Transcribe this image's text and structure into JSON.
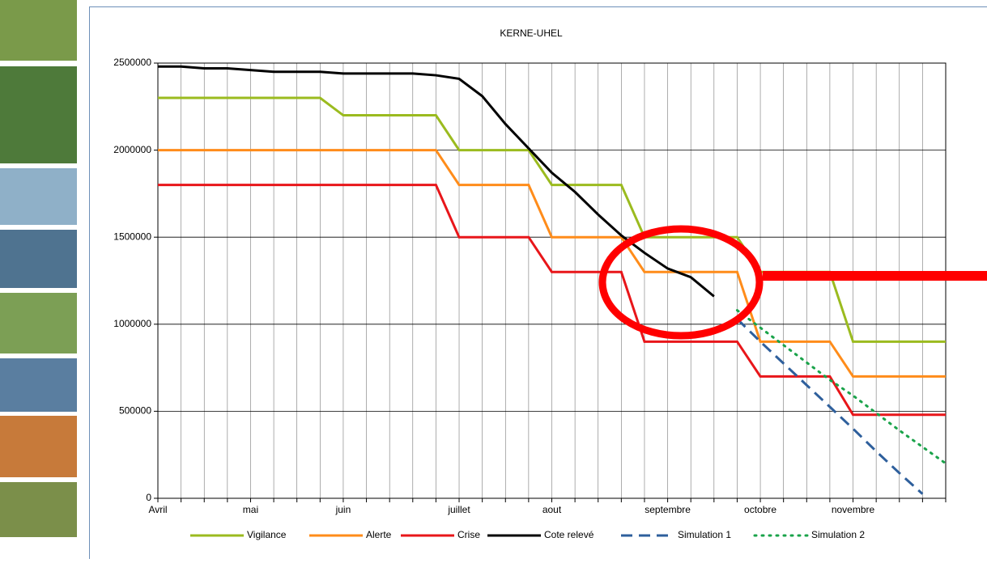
{
  "chart_data": {
    "type": "line",
    "title": "KERNE-UHEL",
    "categories": [
      "Avril",
      null,
      null,
      null,
      "mai",
      null,
      null,
      null,
      "juin",
      null,
      null,
      null,
      null,
      "juillet",
      null,
      null,
      null,
      "aout",
      null,
      null,
      null,
      null,
      "septembre",
      null,
      null,
      null,
      "octobre",
      null,
      null,
      null,
      "novembre",
      null,
      null,
      null,
      null
    ],
    "ylim": [
      0,
      2500000
    ],
    "yticks": [
      0,
      500000,
      1000000,
      1500000,
      2000000,
      2500000
    ],
    "grid": true,
    "legend": "bottom",
    "series": [
      {
        "name": "Vigilance",
        "color": "#9bbb1f",
        "line_style": "solid",
        "values": [
          2300000,
          2300000,
          2300000,
          2300000,
          2300000,
          2300000,
          2300000,
          2300000,
          2200000,
          2200000,
          2200000,
          2200000,
          2200000,
          2000000,
          2000000,
          2000000,
          2000000,
          1800000,
          1800000,
          1800000,
          1800000,
          1500000,
          1500000,
          1500000,
          1500000,
          1500000,
          1300000,
          1300000,
          1300000,
          1300000,
          900000,
          900000,
          900000,
          900000,
          900000
        ]
      },
      {
        "name": "Alerte",
        "color": "#ff8c1a",
        "line_style": "solid",
        "values": [
          2000000,
          2000000,
          2000000,
          2000000,
          2000000,
          2000000,
          2000000,
          2000000,
          2000000,
          2000000,
          2000000,
          2000000,
          2000000,
          1800000,
          1800000,
          1800000,
          1800000,
          1500000,
          1500000,
          1500000,
          1500000,
          1300000,
          1300000,
          1300000,
          1300000,
          1300000,
          900000,
          900000,
          900000,
          900000,
          700000,
          700000,
          700000,
          700000,
          700000
        ]
      },
      {
        "name": "Crise",
        "color": "#e8161a",
        "line_style": "solid",
        "values": [
          1800000,
          1800000,
          1800000,
          1800000,
          1800000,
          1800000,
          1800000,
          1800000,
          1800000,
          1800000,
          1800000,
          1800000,
          1800000,
          1500000,
          1500000,
          1500000,
          1500000,
          1300000,
          1300000,
          1300000,
          1300000,
          900000,
          900000,
          900000,
          900000,
          900000,
          700000,
          700000,
          700000,
          700000,
          480000,
          480000,
          480000,
          480000,
          480000
        ]
      },
      {
        "name": "Cote relevé",
        "color": "#000000",
        "line_style": "solid",
        "values": [
          2480000,
          2480000,
          2470000,
          2470000,
          2460000,
          2450000,
          2450000,
          2450000,
          2440000,
          2440000,
          2440000,
          2440000,
          2430000,
          2410000,
          2310000,
          2150000,
          2010000,
          1870000,
          1760000,
          1630000,
          1510000,
          1410000,
          1320000,
          1270000,
          1160000,
          null,
          null,
          null,
          null,
          null,
          null,
          null,
          null,
          null,
          null
        ]
      },
      {
        "name": "Simulation 1",
        "color": "#2e5f9c",
        "line_style": "dashed",
        "values": [
          null,
          null,
          null,
          null,
          null,
          null,
          null,
          null,
          null,
          null,
          null,
          null,
          null,
          null,
          null,
          null,
          null,
          null,
          null,
          null,
          null,
          null,
          null,
          null,
          null,
          1030000,
          900000,
          775000,
          650000,
          525000,
          400000,
          270000,
          145000,
          25000,
          null
        ]
      },
      {
        "name": "Simulation 2",
        "color": "#1aa34a",
        "line_style": "dotted",
        "values": [
          null,
          null,
          null,
          null,
          null,
          null,
          null,
          null,
          null,
          null,
          null,
          null,
          null,
          null,
          null,
          null,
          null,
          null,
          null,
          null,
          null,
          null,
          null,
          null,
          null,
          1080000,
          980000,
          880000,
          780000,
          680000,
          590000,
          490000,
          390000,
          295000,
          200000
        ]
      }
    ]
  }
}
